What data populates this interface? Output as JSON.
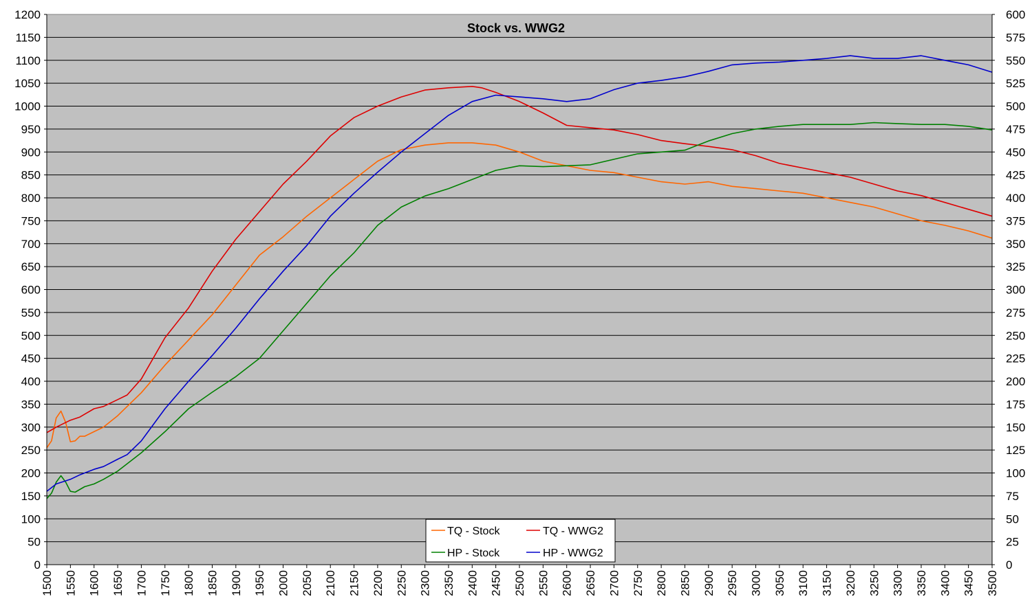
{
  "chart_data": {
    "type": "line",
    "title": "Stock vs. WWG2",
    "xlabel": "",
    "ylabel": "",
    "y2label": "",
    "xlim": [
      1500,
      3500
    ],
    "ylim": [
      0,
      1200
    ],
    "y2lim": [
      0,
      600
    ],
    "x_ticks": [
      1500,
      1550,
      1600,
      1650,
      1700,
      1750,
      1800,
      1850,
      1900,
      1950,
      2000,
      2050,
      2100,
      2150,
      2200,
      2250,
      2300,
      2350,
      2400,
      2450,
      2500,
      2550,
      2600,
      2650,
      2700,
      2750,
      2800,
      2850,
      2900,
      2950,
      3000,
      3050,
      3100,
      3150,
      3200,
      3250,
      3300,
      3350,
      3400,
      3450,
      3500
    ],
    "y_ticks": [
      0,
      50,
      100,
      150,
      200,
      250,
      300,
      350,
      400,
      450,
      500,
      550,
      600,
      650,
      700,
      750,
      800,
      850,
      900,
      950,
      1000,
      1050,
      1100,
      1150,
      1200
    ],
    "y2_ticks": [
      0,
      25,
      50,
      75,
      100,
      125,
      150,
      175,
      200,
      225,
      250,
      275,
      300,
      325,
      350,
      375,
      400,
      425,
      450,
      475,
      500,
      525,
      550,
      575,
      600
    ],
    "grid": true,
    "legend_position": "bottom-center",
    "colors": {
      "plot_background": "#c0c0c0",
      "grid": "#000000",
      "tq_stock": "#ff6600",
      "tq_wwg2": "#dd0000",
      "hp_stock": "#008000",
      "hp_wwg2": "#0000cc"
    },
    "series": [
      {
        "name": "TQ - Stock",
        "axis": "left",
        "color": "#ff6600",
        "x": [
          1500,
          1510,
          1520,
          1530,
          1540,
          1550,
          1560,
          1570,
          1580,
          1600,
          1620,
          1650,
          1670,
          1700,
          1750,
          1800,
          1850,
          1900,
          1950,
          2000,
          2050,
          2100,
          2150,
          2200,
          2250,
          2300,
          2350,
          2400,
          2450,
          2500,
          2550,
          2600,
          2650,
          2700,
          2750,
          2800,
          2850,
          2900,
          2950,
          3000,
          3050,
          3100,
          3150,
          3200,
          3250,
          3300,
          3350,
          3400,
          3450,
          3500
        ],
        "y": [
          255,
          270,
          320,
          335,
          310,
          268,
          270,
          280,
          280,
          290,
          300,
          325,
          345,
          375,
          435,
          490,
          545,
          610,
          675,
          715,
          760,
          800,
          840,
          880,
          905,
          915,
          920,
          920,
          915,
          900,
          880,
          870,
          860,
          855,
          845,
          835,
          830,
          835,
          825,
          820,
          815,
          810,
          800,
          790,
          780,
          765,
          750,
          740,
          728,
          712
        ]
      },
      {
        "name": "TQ - WWG2",
        "axis": "left",
        "color": "#dd0000",
        "x": [
          1500,
          1520,
          1550,
          1570,
          1600,
          1620,
          1650,
          1670,
          1700,
          1750,
          1800,
          1850,
          1900,
          1950,
          2000,
          2050,
          2100,
          2150,
          2200,
          2250,
          2300,
          2350,
          2400,
          2420,
          2450,
          2500,
          2550,
          2600,
          2650,
          2700,
          2750,
          2800,
          2850,
          2900,
          2950,
          3000,
          3050,
          3100,
          3150,
          3200,
          3250,
          3300,
          3350,
          3400,
          3450,
          3500
        ],
        "y": [
          288,
          300,
          315,
          322,
          340,
          345,
          360,
          370,
          405,
          495,
          560,
          640,
          710,
          770,
          830,
          880,
          935,
          975,
          1000,
          1020,
          1035,
          1040,
          1043,
          1040,
          1030,
          1010,
          985,
          958,
          953,
          948,
          938,
          925,
          918,
          912,
          905,
          892,
          875,
          865,
          855,
          845,
          830,
          815,
          805,
          790,
          775,
          760
        ]
      },
      {
        "name": "HP - Stock",
        "axis": "right",
        "color": "#008000",
        "x": [
          1500,
          1510,
          1520,
          1530,
          1540,
          1550,
          1560,
          1570,
          1580,
          1600,
          1620,
          1650,
          1670,
          1700,
          1750,
          1800,
          1850,
          1900,
          1950,
          2000,
          2050,
          2100,
          2150,
          2200,
          2250,
          2300,
          2350,
          2400,
          2450,
          2500,
          2550,
          2600,
          2650,
          2700,
          2750,
          2800,
          2850,
          2900,
          2950,
          3000,
          3050,
          3100,
          3150,
          3200,
          3250,
          3300,
          3350,
          3400,
          3450,
          3500
        ],
        "y": [
          72,
          78,
          90,
          97,
          90,
          80,
          79,
          82,
          85,
          88,
          93,
          102,
          110,
          122,
          145,
          170,
          188,
          205,
          225,
          255,
          285,
          315,
          340,
          370,
          390,
          402,
          410,
          420,
          430,
          435,
          434,
          435,
          436,
          442,
          448,
          450,
          452,
          462,
          470,
          475,
          478,
          480,
          480,
          480,
          482,
          481,
          480,
          480,
          478,
          474
        ]
      },
      {
        "name": "HP - WWG2",
        "axis": "right",
        "color": "#0000cc",
        "x": [
          1500,
          1520,
          1550,
          1570,
          1600,
          1620,
          1650,
          1670,
          1700,
          1750,
          1800,
          1850,
          1900,
          1950,
          2000,
          2050,
          2100,
          2150,
          2200,
          2250,
          2300,
          2350,
          2400,
          2450,
          2500,
          2550,
          2600,
          2650,
          2700,
          2750,
          2800,
          2850,
          2900,
          2950,
          3000,
          3050,
          3100,
          3150,
          3200,
          3250,
          3300,
          3350,
          3400,
          3450,
          3500
        ],
        "y": [
          80,
          88,
          93,
          98,
          104,
          107,
          115,
          120,
          135,
          170,
          200,
          228,
          258,
          290,
          320,
          348,
          380,
          405,
          428,
          450,
          470,
          490,
          505,
          512,
          510,
          508,
          505,
          508,
          518,
          525,
          528,
          532,
          538,
          545,
          547,
          548,
          550,
          552,
          555,
          552,
          552,
          555,
          550,
          545,
          537
        ]
      }
    ]
  }
}
